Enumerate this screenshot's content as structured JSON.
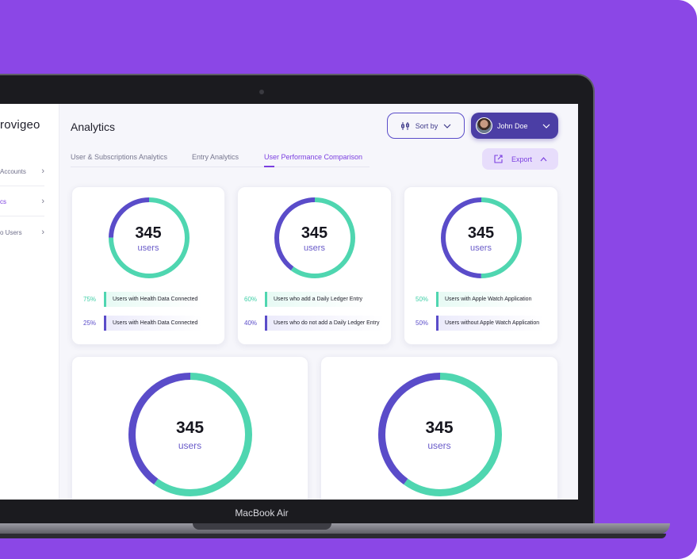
{
  "sidebar": {
    "logo": "rovigeo",
    "items": [
      {
        "label": "Accounts",
        "active": false
      },
      {
        "label": "cs",
        "active": true
      },
      {
        "label": "o Users",
        "active": false
      }
    ]
  },
  "header": {
    "title": "Analytics",
    "sort_label": "Sort by",
    "user_name": "John Doe",
    "export_label": "Export"
  },
  "tabs": [
    {
      "label": "User & Subscriptions Analytics",
      "active": false
    },
    {
      "label": "Entry Analytics",
      "active": false
    },
    {
      "label": "User Performance Comparison",
      "active": true
    }
  ],
  "cards": [
    {
      "total": "345",
      "unit": "users",
      "primary_fraction": 0.25,
      "legend": [
        {
          "pct": "75%",
          "label": "Users with Health Data Connected",
          "color": "#4fd6b0"
        },
        {
          "pct": "25%",
          "label": "Users with Health Data Connected",
          "color": "#5a4cc9"
        }
      ]
    },
    {
      "total": "345",
      "unit": "users",
      "primary_fraction": 0.4,
      "legend": [
        {
          "pct": "60%",
          "label": "Users who add a Daily Ledger Entry",
          "color": "#4fd6b0"
        },
        {
          "pct": "40%",
          "label": "Users who do not add a Daily Ledger Entry",
          "color": "#5a4cc9"
        }
      ]
    },
    {
      "total": "345",
      "unit": "users",
      "primary_fraction": 0.5,
      "legend": [
        {
          "pct": "50%",
          "label": "Users with Apple Watch Application",
          "color": "#4fd6b0"
        },
        {
          "pct": "50%",
          "label": "Users without Apple Watch Application",
          "color": "#5a4cc9"
        }
      ]
    },
    {
      "total": "345",
      "unit": "users",
      "primary_fraction": 0.4
    },
    {
      "total": "345",
      "unit": "users",
      "primary_fraction": 0.4
    }
  ],
  "device": {
    "model": "MacBook Air"
  },
  "colors": {
    "background": "#8b47e6",
    "accent": "#7b3fe0",
    "ring_primary": "#5a4cc9",
    "ring_secondary": "#4fd6b0"
  }
}
